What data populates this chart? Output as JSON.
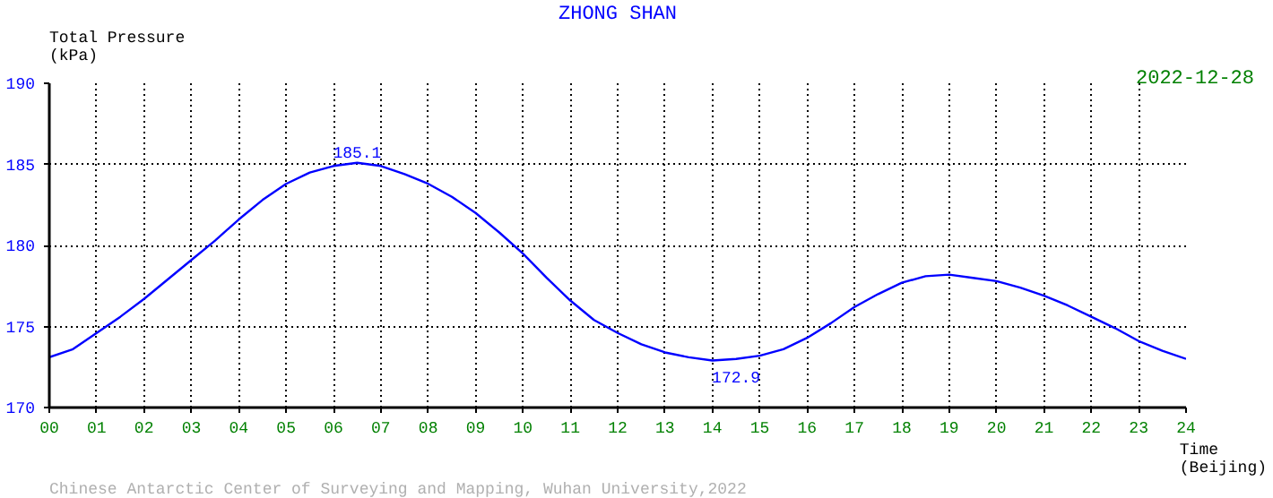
{
  "chart_data": {
    "type": "line",
    "title": "ZHONG SHAN",
    "subtitle": "2022-12-28",
    "ylabel": "Total Pressure\n(kPa)",
    "xlabel": "Time\n(Beijing)",
    "x": [
      0,
      0.5,
      1,
      1.5,
      2,
      2.5,
      3,
      3.5,
      4,
      4.5,
      5,
      5.5,
      6,
      6.5,
      7,
      7.5,
      8,
      8.5,
      9,
      9.5,
      10,
      10.5,
      11,
      11.5,
      12,
      12.5,
      13,
      13.5,
      14,
      14.5,
      15,
      15.5,
      16,
      16.5,
      17,
      17.5,
      18,
      18.5,
      19,
      19.5,
      20,
      20.5,
      21,
      21.5,
      22,
      22.5,
      23,
      23.5,
      24
    ],
    "series": [
      {
        "color": "#0000ff",
        "values": [
          173.1,
          173.6,
          174.6,
          175.6,
          176.7,
          177.9,
          179.1,
          180.3,
          181.6,
          182.8,
          183.8,
          184.5,
          184.9,
          185.1,
          184.9,
          184.4,
          183.8,
          183.0,
          182.0,
          180.8,
          179.5,
          178.0,
          176.6,
          175.4,
          174.6,
          173.9,
          173.4,
          173.1,
          172.9,
          173.0,
          173.2,
          173.6,
          174.3,
          175.2,
          176.2,
          177.0,
          177.7,
          178.1,
          178.2,
          178.0,
          177.8,
          177.4,
          176.9,
          176.3,
          175.6,
          174.9,
          174.1,
          173.5,
          173.0
        ]
      }
    ],
    "xlim": [
      0,
      24
    ],
    "ylim": [
      170,
      190
    ],
    "xticks": [
      {
        "value": 0,
        "label": "00"
      },
      {
        "value": 1,
        "label": "01"
      },
      {
        "value": 2,
        "label": "02"
      },
      {
        "value": 3,
        "label": "03"
      },
      {
        "value": 4,
        "label": "04"
      },
      {
        "value": 5,
        "label": "05"
      },
      {
        "value": 6,
        "label": "06"
      },
      {
        "value": 7,
        "label": "07"
      },
      {
        "value": 8,
        "label": "08"
      },
      {
        "value": 9,
        "label": "09"
      },
      {
        "value": 10,
        "label": "10"
      },
      {
        "value": 11,
        "label": "11"
      },
      {
        "value": 12,
        "label": "12"
      },
      {
        "value": 13,
        "label": "13"
      },
      {
        "value": 14,
        "label": "14"
      },
      {
        "value": 15,
        "label": "15"
      },
      {
        "value": 16,
        "label": "16"
      },
      {
        "value": 17,
        "label": "17"
      },
      {
        "value": 18,
        "label": "18"
      },
      {
        "value": 19,
        "label": "19"
      },
      {
        "value": 20,
        "label": "20"
      },
      {
        "value": 21,
        "label": "21"
      },
      {
        "value": 22,
        "label": "22"
      },
      {
        "value": 23,
        "label": "23"
      },
      {
        "value": 24,
        "label": "24"
      }
    ],
    "yticks": [
      170,
      175,
      180,
      185,
      190
    ],
    "grid": true,
    "marker": "none",
    "line_style": "solid",
    "annotations": [
      {
        "text": "185.1",
        "x": 6.5,
        "y": 185.1
      },
      {
        "text": "172.9",
        "x": 14.5,
        "y": 172.9
      },
      "Chinese Antarctic Center of Surveying and Mapping, Wuhan University,2022"
    ]
  }
}
